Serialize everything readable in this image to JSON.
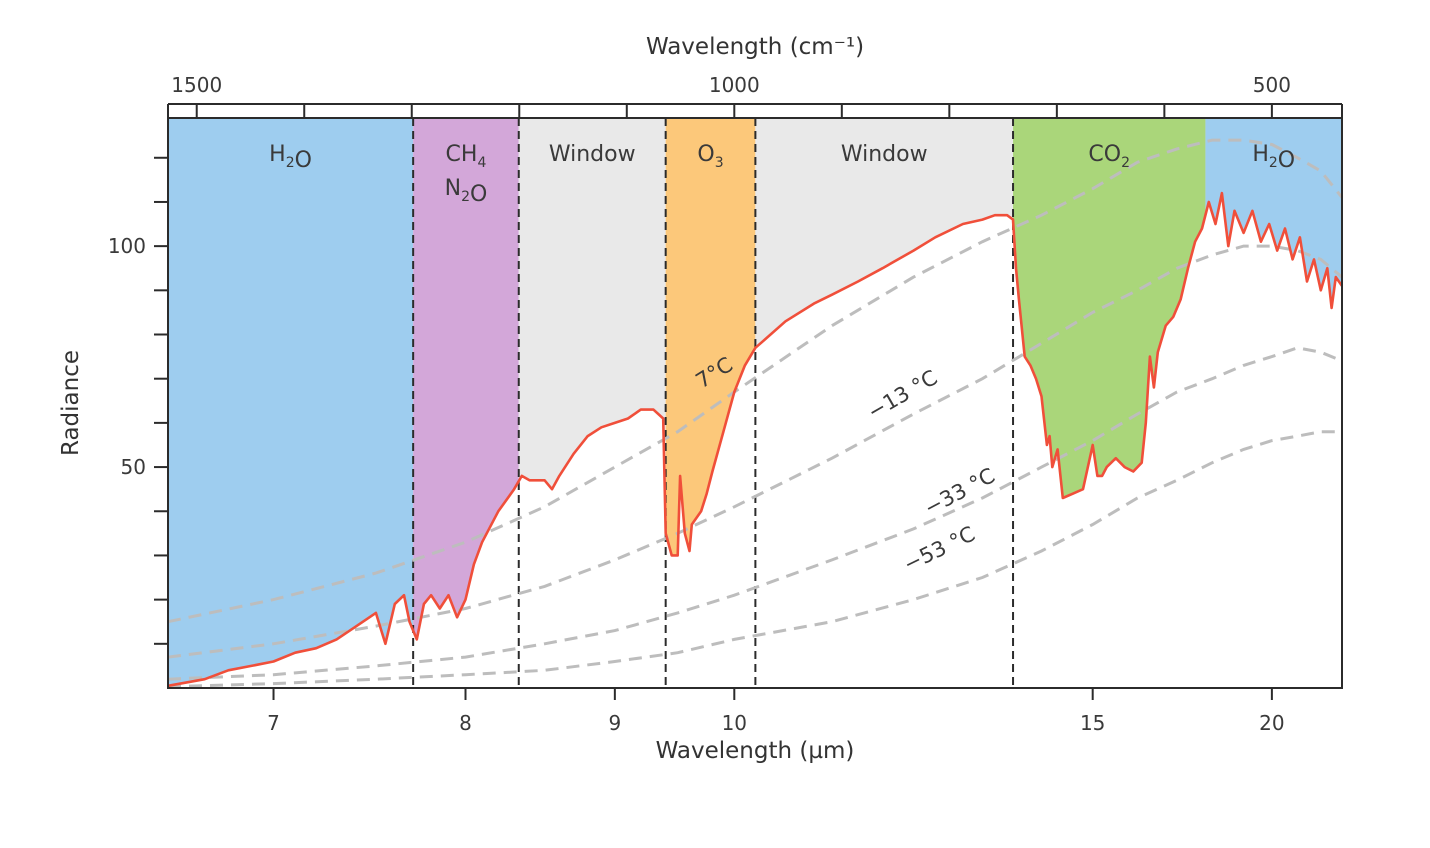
{
  "chart_data": {
    "type": "line",
    "xlabel": "Wavelength (µm)",
    "top_xlabel": "Wavelength (cm⁻¹)",
    "ylabel": "Radiance",
    "xlim": [
      6.55,
      23.0
    ],
    "ylim": [
      0,
      129
    ],
    "x_scale": "reciprocal",
    "bottom_ticks": [
      {
        "x": 7,
        "label": "7"
      },
      {
        "x": 8,
        "label": "8"
      },
      {
        "x": 9,
        "label": "9"
      },
      {
        "x": 10,
        "label": "10"
      },
      {
        "x": 15,
        "label": "15"
      },
      {
        "x": 20,
        "label": "20"
      }
    ],
    "top_ticks": [
      {
        "wavenumber": 1500,
        "label": "1500"
      },
      {
        "wavenumber": 1400,
        "label": ""
      },
      {
        "wavenumber": 1300,
        "label": ""
      },
      {
        "wavenumber": 1200,
        "label": ""
      },
      {
        "wavenumber": 1100,
        "label": ""
      },
      {
        "wavenumber": 1000,
        "label": "1000"
      },
      {
        "wavenumber": 900,
        "label": ""
      },
      {
        "wavenumber": 800,
        "label": ""
      },
      {
        "wavenumber": 700,
        "label": ""
      },
      {
        "wavenumber": 600,
        "label": ""
      },
      {
        "wavenumber": 500,
        "label": "500"
      }
    ],
    "y_ticks": [
      {
        "y": 10,
        "label": ""
      },
      {
        "y": 20,
        "label": ""
      },
      {
        "y": 30,
        "label": ""
      },
      {
        "y": 40,
        "label": ""
      },
      {
        "y": 50,
        "label": "50"
      },
      {
        "y": 60,
        "label": ""
      },
      {
        "y": 70,
        "label": ""
      },
      {
        "y": 80,
        "label": ""
      },
      {
        "y": 90,
        "label": ""
      },
      {
        "y": 100,
        "label": "100"
      },
      {
        "y": 110,
        "label": ""
      },
      {
        "y": 120,
        "label": ""
      }
    ],
    "bands": [
      {
        "from": 6.55,
        "to": 7.7,
        "color": "#9ecdef",
        "label": "H₂O",
        "dashed_right": true
      },
      {
        "from": 7.7,
        "to": 8.33,
        "color": "#d3a7d9",
        "label": "CH₄",
        "label2": "N₂O",
        "dashed_right": true
      },
      {
        "from": 8.33,
        "to": 9.4,
        "color": "#e9e9e9",
        "label": "Window",
        "dashed_right": true
      },
      {
        "from": 9.4,
        "to": 10.2,
        "color": "#fcc87a",
        "label": "O₃",
        "dashed_right": true
      },
      {
        "from": 10.2,
        "to": 13.5,
        "color": "#e9e9e9",
        "label": "Window",
        "dashed_right": true
      },
      {
        "from": 13.5,
        "to": 17.8,
        "color": "#aad67a",
        "label": "CO₂",
        "dashed_right": false
      },
      {
        "from": 17.8,
        "to": 23.0,
        "color": "#9ecdef",
        "label": "H₂O",
        "dashed_right": false
      }
    ],
    "reference_curves": [
      {
        "label": "7°C",
        "label_at": [
          9.85,
          70
        ],
        "rotate": -32,
        "points": [
          [
            6.55,
            15
          ],
          [
            7,
            20
          ],
          [
            7.5,
            26
          ],
          [
            8,
            33
          ],
          [
            8.5,
            41
          ],
          [
            9,
            50
          ],
          [
            9.5,
            58
          ],
          [
            10,
            67
          ],
          [
            11,
            82
          ],
          [
            12,
            93
          ],
          [
            13,
            101
          ],
          [
            14,
            107
          ],
          [
            15,
            113
          ],
          [
            16,
            119
          ],
          [
            17,
            122
          ],
          [
            18,
            124
          ],
          [
            19,
            124
          ],
          [
            20,
            123
          ],
          [
            21,
            120
          ],
          [
            22,
            117
          ],
          [
            23,
            111
          ]
        ]
      },
      {
        "label": "−13 °C",
        "label_at": [
          11.9,
          65
        ],
        "rotate": -30,
        "points": [
          [
            6.55,
            7
          ],
          [
            7,
            10
          ],
          [
            7.5,
            14
          ],
          [
            8,
            18
          ],
          [
            8.5,
            23
          ],
          [
            9,
            29
          ],
          [
            9.5,
            35
          ],
          [
            10,
            41
          ],
          [
            11,
            52
          ],
          [
            12,
            62
          ],
          [
            13,
            70
          ],
          [
            14,
            78
          ],
          [
            15,
            85
          ],
          [
            16,
            90
          ],
          [
            17,
            95
          ],
          [
            18,
            98
          ],
          [
            19,
            100
          ],
          [
            20,
            100
          ],
          [
            21,
            99
          ],
          [
            22,
            97
          ],
          [
            23,
            93
          ]
        ]
      },
      {
        "label": "−33 °C",
        "label_at": [
          12.7,
          43
        ],
        "rotate": -28,
        "points": [
          [
            6.55,
            2
          ],
          [
            7,
            3
          ],
          [
            7.5,
            5
          ],
          [
            8,
            7
          ],
          [
            8.5,
            10
          ],
          [
            9,
            13
          ],
          [
            9.5,
            17
          ],
          [
            10,
            21
          ],
          [
            11,
            29
          ],
          [
            12,
            36
          ],
          [
            13,
            43
          ],
          [
            14,
            50
          ],
          [
            15,
            56
          ],
          [
            16,
            62
          ],
          [
            17,
            67
          ],
          [
            18,
            70
          ],
          [
            19,
            73
          ],
          [
            20,
            75
          ],
          [
            21,
            77
          ],
          [
            22,
            76
          ],
          [
            23,
            74
          ]
        ]
      },
      {
        "label": "−53 °C",
        "label_at": [
          12.4,
          30
        ],
        "rotate": -26,
        "points": [
          [
            6.55,
            0.3
          ],
          [
            7,
            1
          ],
          [
            7.5,
            2
          ],
          [
            8,
            3
          ],
          [
            8.5,
            4
          ],
          [
            9,
            6
          ],
          [
            9.5,
            8
          ],
          [
            10,
            11
          ],
          [
            11,
            15
          ],
          [
            12,
            20
          ],
          [
            13,
            25
          ],
          [
            14,
            31
          ],
          [
            15,
            37
          ],
          [
            16,
            43
          ],
          [
            17,
            47
          ],
          [
            18,
            51
          ],
          [
            19,
            54
          ],
          [
            20,
            56
          ],
          [
            21,
            57
          ],
          [
            22,
            58
          ],
          [
            23,
            58
          ]
        ]
      }
    ],
    "series": [
      {
        "color": "#f04f3a",
        "points": [
          [
            6.55,
            0.5
          ],
          [
            6.7,
            2
          ],
          [
            6.8,
            4
          ],
          [
            6.9,
            5
          ],
          [
            7.0,
            6
          ],
          [
            7.1,
            8
          ],
          [
            7.2,
            9
          ],
          [
            7.3,
            11
          ],
          [
            7.4,
            14
          ],
          [
            7.5,
            17
          ],
          [
            7.55,
            10
          ],
          [
            7.6,
            19
          ],
          [
            7.65,
            21
          ],
          [
            7.68,
            15
          ],
          [
            7.72,
            11
          ],
          [
            7.76,
            19
          ],
          [
            7.8,
            21
          ],
          [
            7.85,
            18
          ],
          [
            7.9,
            21
          ],
          [
            7.95,
            16
          ],
          [
            8.0,
            20
          ],
          [
            8.05,
            28
          ],
          [
            8.1,
            33
          ],
          [
            8.2,
            40
          ],
          [
            8.3,
            45
          ],
          [
            8.35,
            48
          ],
          [
            8.4,
            47
          ],
          [
            8.5,
            47
          ],
          [
            8.55,
            45
          ],
          [
            8.6,
            48
          ],
          [
            8.7,
            53
          ],
          [
            8.8,
            57
          ],
          [
            8.9,
            59
          ],
          [
            9.0,
            60
          ],
          [
            9.1,
            61
          ],
          [
            9.2,
            63
          ],
          [
            9.3,
            63
          ],
          [
            9.38,
            61
          ],
          [
            9.4,
            35
          ],
          [
            9.45,
            30
          ],
          [
            9.5,
            30
          ],
          [
            9.52,
            48
          ],
          [
            9.56,
            35
          ],
          [
            9.6,
            31
          ],
          [
            9.62,
            37
          ],
          [
            9.7,
            40
          ],
          [
            9.75,
            44
          ],
          [
            9.8,
            49
          ],
          [
            9.9,
            58
          ],
          [
            10.0,
            67
          ],
          [
            10.1,
            73
          ],
          [
            10.2,
            77
          ],
          [
            10.3,
            79
          ],
          [
            10.5,
            83
          ],
          [
            10.8,
            87
          ],
          [
            11.0,
            89
          ],
          [
            11.3,
            92
          ],
          [
            11.6,
            95
          ],
          [
            12.0,
            99
          ],
          [
            12.3,
            102
          ],
          [
            12.7,
            105
          ],
          [
            13.0,
            106
          ],
          [
            13.2,
            107
          ],
          [
            13.4,
            107
          ],
          [
            13.5,
            106
          ],
          [
            13.55,
            95
          ],
          [
            13.6,
            88
          ],
          [
            13.7,
            75
          ],
          [
            13.8,
            73
          ],
          [
            13.9,
            70
          ],
          [
            14.0,
            66
          ],
          [
            14.1,
            55
          ],
          [
            14.15,
            57
          ],
          [
            14.2,
            50
          ],
          [
            14.3,
            54
          ],
          [
            14.4,
            43
          ],
          [
            14.6,
            44
          ],
          [
            14.8,
            45
          ],
          [
            15.0,
            55
          ],
          [
            15.1,
            48
          ],
          [
            15.2,
            48
          ],
          [
            15.3,
            50
          ],
          [
            15.5,
            52
          ],
          [
            15.7,
            50
          ],
          [
            15.9,
            49
          ],
          [
            16.1,
            51
          ],
          [
            16.2,
            60
          ],
          [
            16.3,
            75
          ],
          [
            16.4,
            68
          ],
          [
            16.5,
            76
          ],
          [
            16.7,
            82
          ],
          [
            16.9,
            84
          ],
          [
            17.1,
            88
          ],
          [
            17.3,
            95
          ],
          [
            17.5,
            101
          ],
          [
            17.7,
            104
          ],
          [
            17.9,
            110
          ],
          [
            18.1,
            105
          ],
          [
            18.3,
            112
          ],
          [
            18.5,
            100
          ],
          [
            18.7,
            108
          ],
          [
            19.0,
            103
          ],
          [
            19.3,
            108
          ],
          [
            19.6,
            101
          ],
          [
            19.9,
            105
          ],
          [
            20.2,
            99
          ],
          [
            20.5,
            104
          ],
          [
            20.8,
            97
          ],
          [
            21.1,
            102
          ],
          [
            21.4,
            92
          ],
          [
            21.7,
            97
          ],
          [
            22.0,
            90
          ],
          [
            22.3,
            95
          ],
          [
            22.5,
            86
          ],
          [
            22.7,
            93
          ],
          [
            23.0,
            91
          ]
        ]
      }
    ]
  }
}
